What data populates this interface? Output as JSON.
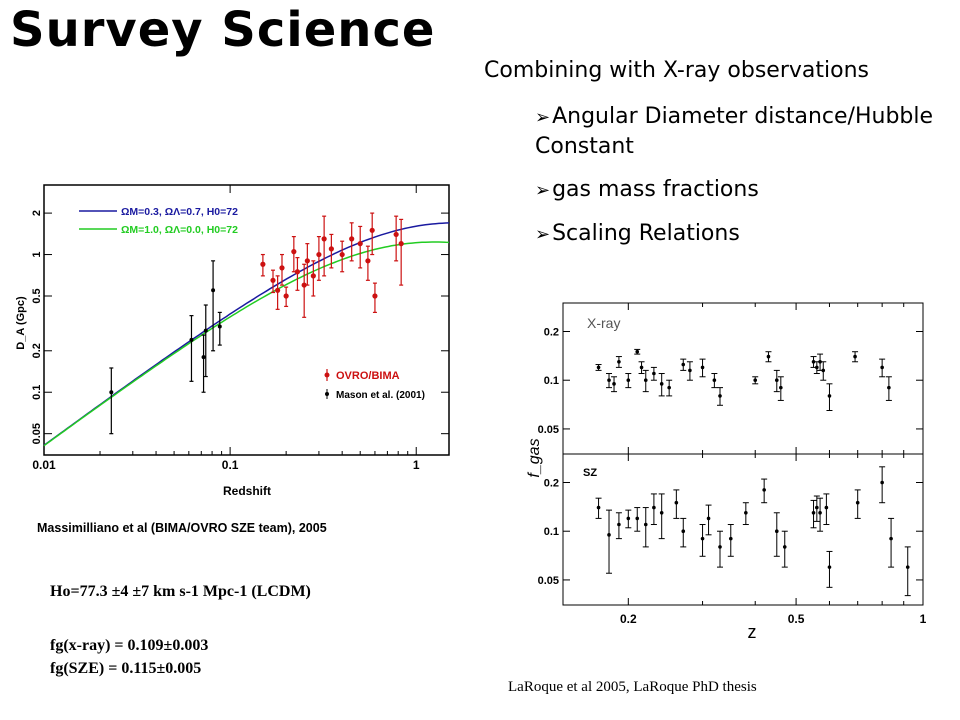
{
  "slide": {
    "title": "Survey Science",
    "subtitle": "Combining with X-ray observations",
    "bullets": [
      "Angular Diameter distance/Hubble Constant",
      "gas mass fractions",
      "Scaling Relations"
    ],
    "left_caption": "Massimilliano et al (BIMA/OVRO SZE team), 2005",
    "results": [
      "Ho=77.3 ±4 ±7 km s-1 Mpc-1 (LCDM)",
      "fg(x-ray) = 0.109±0.003",
      "fg(SZE) = 0.115±0.005"
    ],
    "right_caption": "LaRoque et al 2005, LaRoque PhD thesis"
  },
  "chart_data": [
    {
      "type": "scatter",
      "xlabel": "Redshift",
      "ylabel": "D_A (Gpc)",
      "xscale": "log",
      "yscale": "log",
      "xlim": [
        0.01,
        1.5
      ],
      "ylim": [
        0.035,
        3.2
      ],
      "xticks": [
        "0.01",
        "0.1",
        "1"
      ],
      "yticks": [
        "0.05",
        "0.1",
        "0.2",
        "0.5",
        "1",
        "2"
      ],
      "legend_curves": [
        {
          "label": "ΩM=0.3, ΩΛ=0.7, H0=72",
          "color": "#1a1aa0"
        },
        {
          "label": "ΩM=1.0, ΩΛ=0.0, H0=72",
          "color": "#22cc22"
        }
      ],
      "legend_points": [
        "OVRO/BIMA",
        "Mason et al. (2001)"
      ],
      "legend_colors": [
        "#cc1111",
        "#000000"
      ],
      "series": [
        {
          "name": "OVRO/BIMA",
          "x": [
            0.15,
            0.17,
            0.18,
            0.19,
            0.2,
            0.22,
            0.23,
            0.25,
            0.26,
            0.28,
            0.3,
            0.32,
            0.35,
            0.4,
            0.45,
            0.5,
            0.55,
            0.58,
            0.6,
            0.78,
            0.83
          ],
          "y": [
            0.85,
            0.65,
            0.55,
            0.8,
            0.5,
            1.05,
            0.75,
            0.6,
            0.9,
            0.7,
            1.0,
            1.3,
            1.1,
            1.0,
            1.3,
            1.2,
            0.9,
            1.5,
            0.5,
            1.4,
            1.2
          ],
          "err": [
            0.15,
            0.12,
            0.15,
            0.2,
            0.08,
            0.3,
            0.2,
            0.25,
            0.3,
            0.2,
            0.35,
            0.6,
            0.3,
            0.25,
            0.4,
            0.4,
            0.25,
            0.5,
            0.12,
            0.5,
            0.6
          ]
        },
        {
          "name": "Mason et al. (2001)",
          "x": [
            0.023,
            0.062,
            0.072,
            0.074,
            0.081,
            0.088
          ],
          "y": [
            0.1,
            0.24,
            0.18,
            0.28,
            0.55,
            0.3
          ],
          "err": [
            0.05,
            0.12,
            0.08,
            0.15,
            0.35,
            0.08
          ]
        }
      ]
    },
    {
      "type": "scatter",
      "xlabel": "z",
      "ylabel": "f_gas",
      "xscale": "log",
      "yscale": "log",
      "xlim": [
        0.14,
        1.0
      ],
      "ylim": [
        0.035,
        0.3
      ],
      "xticks": [
        "0.2",
        "0.5",
        "1"
      ],
      "yticks": [
        "0.05",
        "0.1",
        "0.2"
      ],
      "panels": [
        {
          "label": "X-ray",
          "x": [
            0.17,
            0.18,
            0.185,
            0.19,
            0.2,
            0.21,
            0.215,
            0.22,
            0.23,
            0.24,
            0.25,
            0.27,
            0.28,
            0.3,
            0.32,
            0.33,
            0.4,
            0.43,
            0.45,
            0.46,
            0.55,
            0.56,
            0.57,
            0.58,
            0.6,
            0.69,
            0.8,
            0.83
          ],
          "y": [
            0.12,
            0.1,
            0.095,
            0.13,
            0.1,
            0.15,
            0.12,
            0.1,
            0.11,
            0.095,
            0.09,
            0.125,
            0.115,
            0.12,
            0.1,
            0.08,
            0.1,
            0.14,
            0.1,
            0.09,
            0.13,
            0.12,
            0.13,
            0.115,
            0.08,
            0.14,
            0.12,
            0.09
          ],
          "err": [
            0.005,
            0.01,
            0.01,
            0.01,
            0.01,
            0.005,
            0.01,
            0.015,
            0.01,
            0.015,
            0.01,
            0.01,
            0.015,
            0.015,
            0.01,
            0.01,
            0.005,
            0.01,
            0.015,
            0.015,
            0.01,
            0.01,
            0.015,
            0.015,
            0.015,
            0.01,
            0.015,
            0.015
          ]
        },
        {
          "label": "SZ",
          "x": [
            0.17,
            0.18,
            0.19,
            0.2,
            0.21,
            0.22,
            0.23,
            0.24,
            0.26,
            0.27,
            0.3,
            0.31,
            0.33,
            0.35,
            0.38,
            0.42,
            0.45,
            0.47,
            0.55,
            0.56,
            0.57,
            0.59,
            0.6,
            0.7,
            0.8,
            0.84,
            0.92
          ],
          "y": [
            0.14,
            0.095,
            0.11,
            0.12,
            0.12,
            0.11,
            0.14,
            0.13,
            0.15,
            0.1,
            0.09,
            0.12,
            0.08,
            0.09,
            0.13,
            0.18,
            0.1,
            0.08,
            0.13,
            0.14,
            0.13,
            0.14,
            0.06,
            0.15,
            0.2,
            0.09,
            0.06
          ],
          "err": [
            0.02,
            0.04,
            0.02,
            0.015,
            0.02,
            0.03,
            0.03,
            0.04,
            0.03,
            0.02,
            0.02,
            0.025,
            0.02,
            0.02,
            0.02,
            0.03,
            0.03,
            0.02,
            0.025,
            0.025,
            0.03,
            0.03,
            0.015,
            0.03,
            0.05,
            0.03,
            0.02
          ]
        }
      ]
    }
  ]
}
